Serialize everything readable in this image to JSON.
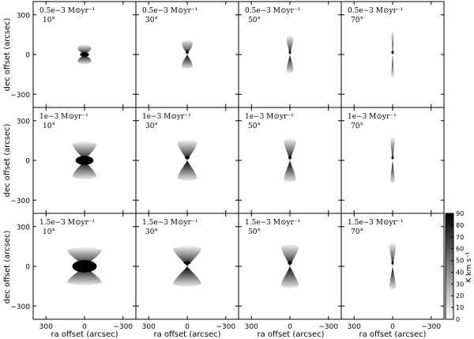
{
  "chart_data": {
    "type": "heatmap",
    "grid_rows": 3,
    "grid_cols": 4,
    "xlabel": "ra offset (arcsec)",
    "ylabel": "dec offset (arcsec)",
    "xlim": [
      400,
      -400
    ],
    "ylim": [
      -400,
      400
    ],
    "x_ticks": [
      300,
      0,
      -300
    ],
    "y_ticks": [
      300,
      0,
      -300
    ],
    "rows": [
      {
        "rate_label": "0.5e−3 M⊙yr⁻¹",
        "rate": 0.5
      },
      {
        "rate_label": "1e−3 M⊙yr⁻¹",
        "rate": 1.0
      },
      {
        "rate_label": "1.5e−3 M⊙yr⁻¹",
        "rate": 1.5
      }
    ],
    "cols": [
      {
        "angle_label": "10°",
        "angle_deg": 10
      },
      {
        "angle_label": "30°",
        "angle_deg": 30
      },
      {
        "angle_label": "50°",
        "angle_deg": 50
      },
      {
        "angle_label": "70°",
        "angle_deg": 70
      }
    ],
    "colorbar": {
      "label": "K km s⁻¹",
      "min": 0,
      "max": 90,
      "ticks": [
        0,
        10,
        20,
        30,
        40,
        50,
        60,
        70,
        80,
        90
      ],
      "colormap": "gray_r"
    },
    "colors": {
      "low": "#ffffff",
      "high": "#000000",
      "axes": "#000000"
    }
  }
}
